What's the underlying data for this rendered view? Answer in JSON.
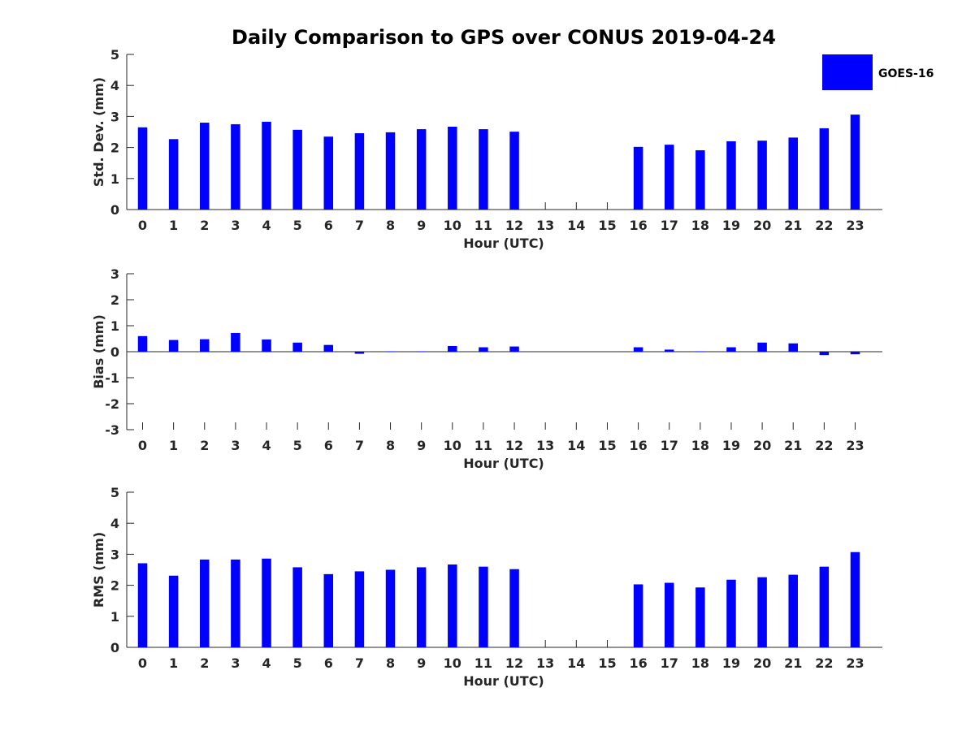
{
  "title": "Daily Comparison to GPS over CONUS 2019-04-24",
  "bar_color": "#0000ff",
  "legend": {
    "label": "GOES-16",
    "color": "#0000ff"
  },
  "chart_data": [
    {
      "type": "bar",
      "name": "stddev",
      "xlabel": "Hour (UTC)",
      "ylabel": "Std. Dev. (mm)",
      "ylim": [
        0,
        5
      ],
      "yticks": [
        "0",
        "1",
        "2",
        "3",
        "4",
        "5"
      ],
      "categories": [
        "0",
        "1",
        "2",
        "3",
        "4",
        "5",
        "6",
        "7",
        "8",
        "9",
        "10",
        "11",
        "12",
        "13",
        "14",
        "15",
        "16",
        "17",
        "18",
        "19",
        "20",
        "21",
        "22",
        "23"
      ],
      "series": [
        {
          "name": "GOES-16",
          "values": [
            2.65,
            2.27,
            2.8,
            2.75,
            2.83,
            2.57,
            2.35,
            2.46,
            2.49,
            2.59,
            2.67,
            2.59,
            2.51,
            null,
            null,
            null,
            2.02,
            2.09,
            1.91,
            2.2,
            2.22,
            2.32,
            2.62,
            3.06
          ]
        }
      ]
    },
    {
      "type": "bar",
      "name": "bias",
      "xlabel": "Hour (UTC)",
      "ylabel": "Bias (mm)",
      "ylim": [
        -3,
        3
      ],
      "yticks": [
        "-3",
        "-2",
        "-1",
        "0",
        "1",
        "2",
        "3"
      ],
      "categories": [
        "0",
        "1",
        "2",
        "3",
        "4",
        "5",
        "6",
        "7",
        "8",
        "9",
        "10",
        "11",
        "12",
        "13",
        "14",
        "15",
        "16",
        "17",
        "18",
        "19",
        "20",
        "21",
        "22",
        "23"
      ],
      "series": [
        {
          "name": "GOES-16",
          "values": [
            0.6,
            0.45,
            0.48,
            0.72,
            0.47,
            0.35,
            0.26,
            -0.08,
            -0.01,
            0.0,
            0.22,
            0.17,
            0.2,
            null,
            null,
            null,
            0.17,
            0.08,
            0.0,
            0.17,
            0.35,
            0.32,
            -0.13,
            -0.1
          ]
        }
      ]
    },
    {
      "type": "bar",
      "name": "rms",
      "xlabel": "Hour (UTC)",
      "ylabel": "RMS (mm)",
      "ylim": [
        0,
        5
      ],
      "yticks": [
        "0",
        "1",
        "2",
        "3",
        "4",
        "5"
      ],
      "categories": [
        "0",
        "1",
        "2",
        "3",
        "4",
        "5",
        "6",
        "7",
        "8",
        "9",
        "10",
        "11",
        "12",
        "13",
        "14",
        "15",
        "16",
        "17",
        "18",
        "19",
        "20",
        "21",
        "22",
        "23"
      ],
      "series": [
        {
          "name": "GOES-16",
          "values": [
            2.71,
            2.31,
            2.83,
            2.83,
            2.86,
            2.58,
            2.36,
            2.45,
            2.5,
            2.58,
            2.67,
            2.6,
            2.52,
            null,
            null,
            null,
            2.03,
            2.08,
            1.93,
            2.18,
            2.26,
            2.34,
            2.6,
            3.07
          ]
        }
      ]
    }
  ]
}
